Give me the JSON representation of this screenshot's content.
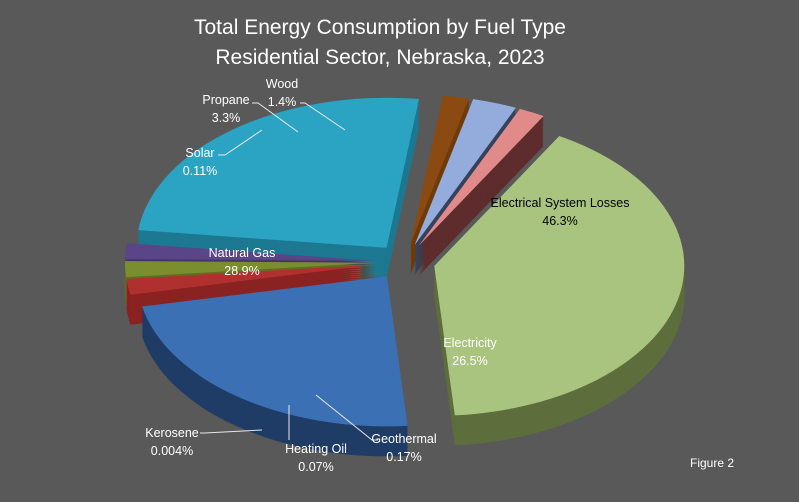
{
  "chart_data": {
    "type": "pie",
    "style": "3d-exploded",
    "title": [
      "Total Energy Consumption by Fuel Type",
      "Residential Sector, Nebraska, 2023"
    ],
    "figure_label": "Figure 2",
    "slices": [
      {
        "label": "Electrical System Losses",
        "value": 46.3,
        "value_label": "46.3%",
        "color": "#a9c47f",
        "side": "#5d6e3c"
      },
      {
        "label": "Electricity",
        "value": 26.5,
        "value_label": "26.5%",
        "color": "#3c70b4",
        "side": "#1f3c66"
      },
      {
        "label": "Geothermal",
        "value": 0.17,
        "value_label": "0.17%",
        "color": "#b03030",
        "side": "#8a2222"
      },
      {
        "label": "Heating Oil",
        "value": 0.07,
        "value_label": "0.07%",
        "color": "#7a8e30",
        "side": "#5f7022"
      },
      {
        "label": "Kerosene",
        "value": 0.004,
        "value_label": "0.004%",
        "color": "#5a4588",
        "side": "#45336b"
      },
      {
        "label": "Natural Gas",
        "value": 28.9,
        "value_label": "28.9%",
        "color": "#2ba3c2",
        "side": "#1d7891"
      },
      {
        "label": "Solar",
        "value": 0.11,
        "value_label": "0.11%",
        "color": "#8a4a12",
        "side": "#6e3a08"
      },
      {
        "label": "Propane",
        "value": 3.3,
        "value_label": "3.3%",
        "color": "#93acdc",
        "side": "#34425c"
      },
      {
        "label": "Wood",
        "value": 1.4,
        "value_label": "1.4%",
        "color": "#e08a8a",
        "side": "#5e2c2c"
      }
    ],
    "legend": "none",
    "data_labels": "outside-with-leaders for small slices, inside for large"
  }
}
